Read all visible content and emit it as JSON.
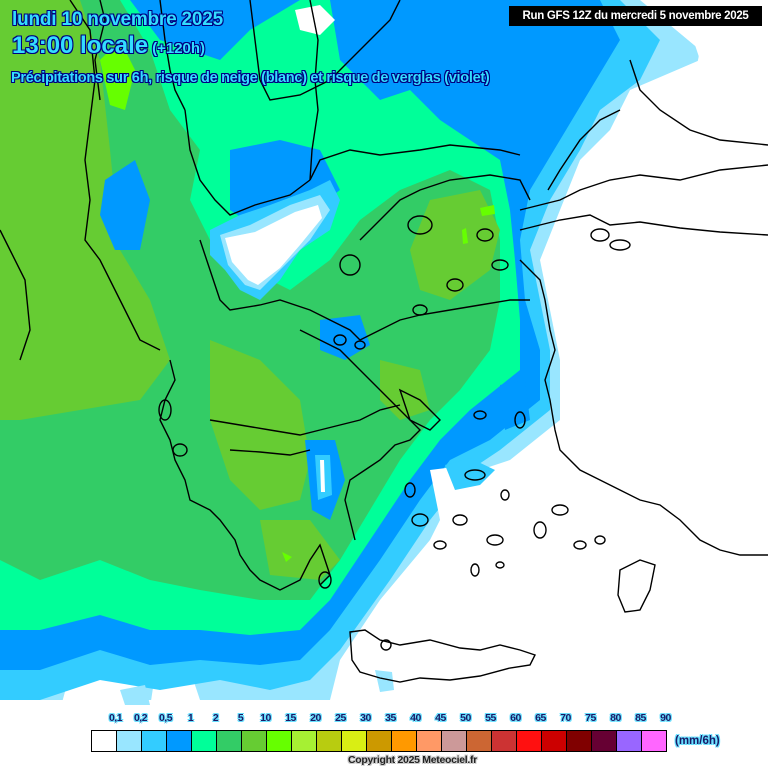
{
  "header": {
    "date": "lundi 10 novembre 2025",
    "time": "13:00 locale",
    "lead_time": "(+120h)",
    "subtitle": "Précipitations sur 6h, risque de neige (blanc) et risque de verglas (violet)",
    "run_info": "Run GFS 12Z du mercredi 5 novembre 2025"
  },
  "map": {
    "region": "Greece / Balkans / Aegean",
    "palette": {
      "none": "#ffffff",
      "p01": "#99e6ff",
      "p02": "#33ccff",
      "p05": "#0099ff",
      "p1": "#00ff99",
      "p2": "#33cc66",
      "p5": "#66cc33",
      "p10": "#66ff00"
    }
  },
  "legend": {
    "labels": [
      "0,1",
      "0,2",
      "0,5",
      "1",
      "2",
      "5",
      "10",
      "15",
      "20",
      "25",
      "30",
      "35",
      "40",
      "45",
      "50",
      "55",
      "60",
      "65",
      "70",
      "75",
      "80",
      "85",
      "90"
    ],
    "colors": [
      "#ffffff",
      "#99e6ff",
      "#33ccff",
      "#0099ff",
      "#00ff99",
      "#33cc66",
      "#66cc33",
      "#66ff00",
      "#a6f033",
      "#b8cc10",
      "#d9ee14",
      "#cc9900",
      "#ff9900",
      "#ff9966",
      "#cc9999",
      "#cc6633",
      "#cc3333",
      "#ff1010",
      "#cc0000",
      "#800000",
      "#660033",
      "#9966ff",
      "#ff66ff"
    ],
    "unit": "(mm/6h)"
  },
  "footer": {
    "copyright": "Copyright 2025 Meteociel.fr"
  }
}
